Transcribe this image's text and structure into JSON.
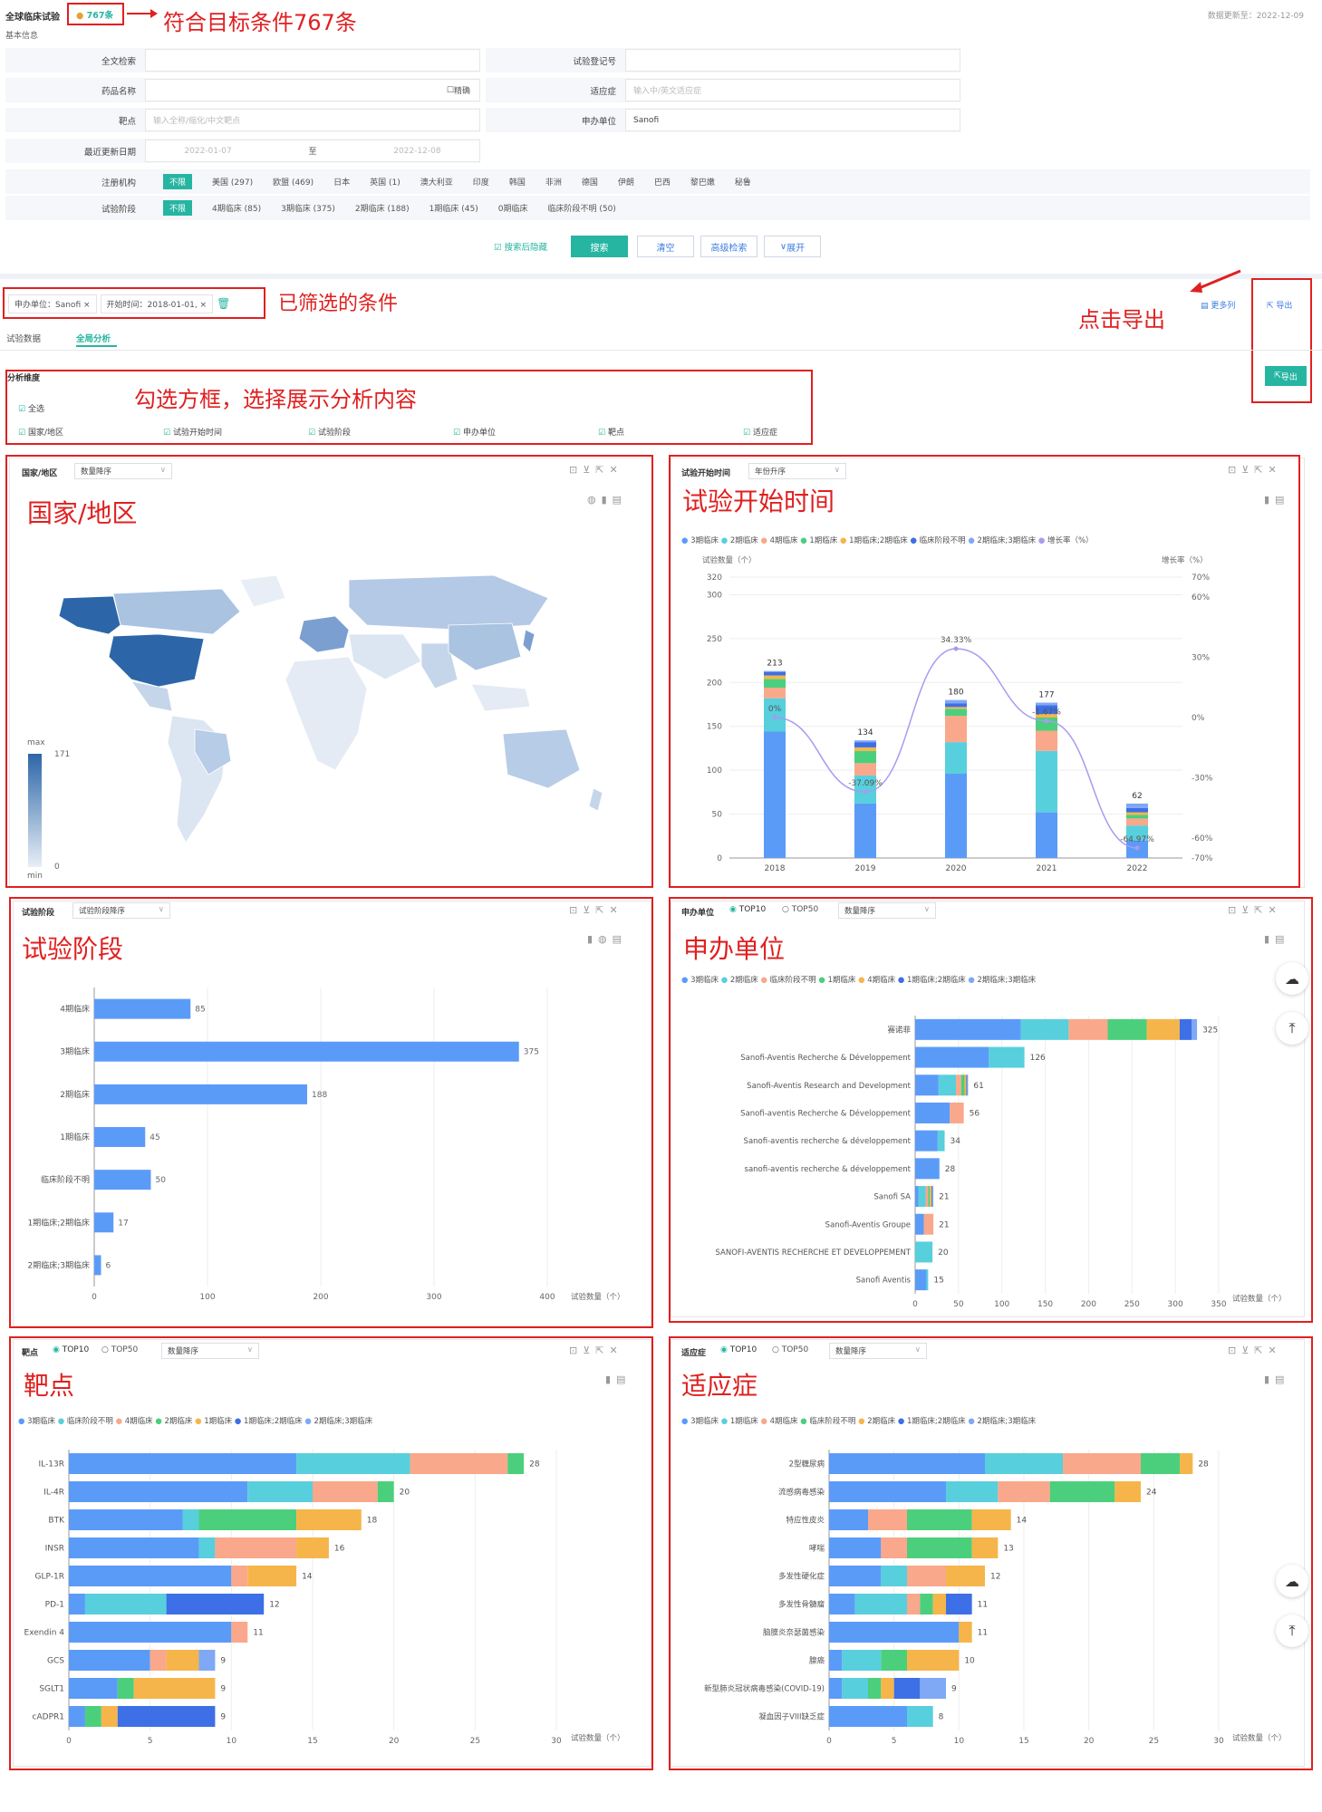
{
  "header": {
    "title": "全球临床试验",
    "count_badge": "767条",
    "annot_count": "符合目标条件767条",
    "updated": "数据更新至：2022-12-09",
    "section": "基本信息"
  },
  "form": {
    "fulltext_label": "全文检索",
    "regno_label": "试验登记号",
    "drug_label": "药品名称",
    "exact_label": "精确",
    "indication_label": "适应症",
    "indication_ph": "输入中/英文适应症",
    "target_label": "靶点",
    "target_ph": "输入全称/缩化/中文靶点",
    "sponsor_label": "申办单位",
    "sponsor_value": "Sanofi",
    "date_label": "最近更新日期",
    "date_from": "2022-01-07",
    "date_to_word": "至",
    "date_to": "2022-12-08",
    "reg_label": "注册机构",
    "reg_all": "不限",
    "reg_options": [
      "美国 (297)",
      "欧盟 (469)",
      "日本",
      "英国 (1)",
      "澳大利亚",
      "印度",
      "韩国",
      "非洲",
      "德国",
      "伊朗",
      "巴西",
      "黎巴嫩",
      "秘鲁"
    ],
    "phase_label": "试验阶段",
    "phase_all": "不限",
    "phase_options": [
      "4期临床 (85)",
      "3期临床 (375)",
      "2期临床 (188)",
      "1期临床 (45)",
      "0期临床",
      "临床阶段不明 (50)"
    ]
  },
  "actions": {
    "hide_after": "搜索后隐藏",
    "search": "搜索",
    "clear": "清空",
    "advanced": "高级检索",
    "expand": "展开"
  },
  "filters": {
    "chips": [
      "申办单位：Sanofi ×",
      "开始时间：2018-01-01, ×"
    ],
    "annot": "已筛选的条件",
    "more_cols": "更多列",
    "export": "导出",
    "annot_export": "点击导出"
  },
  "tabs": {
    "data": "试验数据",
    "analysis": "全局分析"
  },
  "dims": {
    "title": "分析维度",
    "all": "全选",
    "items": [
      "国家/地区",
      "试验开始时间",
      "试验阶段",
      "申办单位",
      "靶点",
      "适应症"
    ],
    "annot": "勾选方框，选择展示分析内容",
    "export_btn": "导出"
  },
  "p_country": {
    "title": "国家/地区",
    "sort": "数量降序",
    "annot": "国家/地区",
    "max": "max",
    "min": "min",
    "vmax": "171",
    "vmin": "0"
  },
  "p_time": {
    "title": "试验开始时间",
    "sort": "年份升序",
    "annot": "试验开始时间",
    "legend": [
      "3期临床",
      "2期临床",
      "4期临床",
      "1期临床",
      "1期临床;2期临床",
      "临床阶段不明",
      "2期临床;3期临床",
      "增长率（%）"
    ],
    "yleft": "试验数量（个）",
    "yright": "增长率（%）"
  },
  "p_phase": {
    "title": "试验阶段",
    "sort": "试验阶段降序",
    "annot": "试验阶段",
    "xlabel": "试验数量（个）"
  },
  "p_sponsor": {
    "title": "申办单位",
    "top10": "TOP10",
    "top50": "TOP50",
    "sort": "数量降序",
    "annot": "申办单位",
    "legend": [
      "3期临床",
      "2期临床",
      "临床阶段不明",
      "1期临床",
      "4期临床",
      "1期临床;2期临床",
      "2期临床;3期临床"
    ],
    "xlabel": "试验数量（个）"
  },
  "p_target": {
    "title": "靶点",
    "top10": "TOP10",
    "top50": "TOP50",
    "sort": "数量降序",
    "annot": "靶点",
    "legend": [
      "3期临床",
      "临床阶段不明",
      "4期临床",
      "2期临床",
      "1期临床",
      "1期临床;2期临床",
      "2期临床;3期临床"
    ],
    "xlabel": "试验数量（个）"
  },
  "p_indic": {
    "title": "适应症",
    "top10": "TOP10",
    "top50": "TOP50",
    "sort": "数量降序",
    "annot": "适应症",
    "legend": [
      "3期临床",
      "1期临床",
      "4期临床",
      "临床阶段不明",
      "2期临床",
      "1期临床;2期临床",
      "2期临床;3期临床"
    ],
    "xlabel": "试验数量（个）"
  },
  "chart_data": [
    {
      "type": "bar",
      "title": "试验开始时间",
      "categories": [
        "2018",
        "2019",
        "2020",
        "2021",
        "2022"
      ],
      "totals": [
        213,
        134,
        180,
        177,
        62
      ],
      "growth": [
        0,
        -37.09,
        34.33,
        -1.67,
        -64.97
      ],
      "growth_labels": [
        "0%",
        "-37.09%",
        "34.33%",
        "-1.67%",
        "-64.97%"
      ],
      "yticks": [
        0,
        50,
        100,
        150,
        200,
        250,
        300,
        320
      ],
      "ylim": [
        0,
        320
      ],
      "y2ticks": [
        "70%",
        "60%",
        "30%",
        "0%",
        "-30%",
        "-60%",
        "-70%"
      ],
      "series": [
        {
          "name": "3期临床",
          "values": [
            144,
            62,
            96,
            52,
            20
          ]
        },
        {
          "name": "2期临床",
          "values": [
            38,
            32,
            36,
            70,
            17
          ]
        },
        {
          "name": "4期临床",
          "values": [
            12,
            14,
            30,
            23,
            8
          ]
        },
        {
          "name": "1期临床",
          "values": [
            10,
            14,
            8,
            15,
            4
          ]
        },
        {
          "name": "1期临床;2期临床",
          "values": [
            4,
            4,
            2,
            4,
            3
          ]
        },
        {
          "name": "临床阶段不明",
          "values": [
            4,
            6,
            4,
            10,
            5
          ]
        },
        {
          "name": "2期临床;3期临床",
          "values": [
            1,
            2,
            4,
            3,
            5
          ]
        }
      ]
    },
    {
      "type": "bar",
      "title": "试验阶段",
      "categories": [
        "4期临床",
        "3期临床",
        "2期临床",
        "1期临床",
        "临床阶段不明",
        "1期临床;2期临床",
        "2期临床;3期临床"
      ],
      "values": [
        85,
        375,
        188,
        45,
        50,
        17,
        6
      ],
      "xticks": [
        0,
        100,
        200,
        300,
        400
      ],
      "xlim": [
        0,
        400
      ]
    },
    {
      "type": "bar",
      "title": "申办单位",
      "categories": [
        "赛诺菲",
        "Sanofi-Aventis Recherche & Développement",
        "Sanofi-Aventis Research and Development",
        "Sanofi-aventis Recherche & Développement",
        "Sanofi-aventis recherche & développement",
        "sanofi-aventis recherche & développement",
        "Sanofi SA",
        "Sanofi-Aventis Groupe",
        "SANOFI-AVENTIS RECHERCHE ET DEVELOPPEMENT",
        "Sanofi Aventis"
      ],
      "totals": [
        325,
        126,
        61,
        56,
        34,
        28,
        21,
        21,
        20,
        15
      ],
      "xticks": [
        0,
        50,
        100,
        150,
        200,
        250,
        300,
        350
      ],
      "xlim": [
        0,
        350
      ],
      "series": [
        {
          "name": "3期临床",
          "values": [
            122,
            85,
            27,
            40,
            26,
            28,
            4,
            10,
            0,
            13
          ]
        },
        {
          "name": "2期临床",
          "values": [
            55,
            41,
            20,
            0,
            8,
            0,
            8,
            0,
            20,
            2
          ]
        },
        {
          "name": "临床阶段不明",
          "values": [
            45,
            0,
            6,
            16,
            0,
            0,
            3,
            11,
            0,
            0
          ]
        },
        {
          "name": "1期临床",
          "values": [
            45,
            0,
            4,
            0,
            0,
            0,
            2,
            0,
            0,
            0
          ]
        },
        {
          "name": "4期临床",
          "values": [
            38,
            0,
            2,
            0,
            0,
            0,
            2,
            0,
            0,
            0
          ]
        },
        {
          "name": "1期临床;2期临床",
          "values": [
            14,
            0,
            1,
            0,
            0,
            0,
            1,
            0,
            0,
            0
          ]
        },
        {
          "name": "2期临床;3期临床",
          "values": [
            6,
            0,
            1,
            0,
            0,
            0,
            1,
            0,
            0,
            0
          ]
        }
      ]
    },
    {
      "type": "bar",
      "title": "靶点",
      "categories": [
        "IL-13R",
        "IL-4R",
        "BTK",
        "INSR",
        "GLP-1R",
        "PD-1",
        "Exendin 4",
        "GCS",
        "SGLT1",
        "cADPR1"
      ],
      "totals": [
        28,
        20,
        18,
        16,
        14,
        12,
        11,
        9,
        9,
        9
      ],
      "xticks": [
        0,
        5,
        10,
        15,
        20,
        25,
        30
      ],
      "xlim": [
        0,
        30
      ],
      "series": [
        {
          "name": "3期临床",
          "values": [
            14,
            11,
            7,
            8,
            10,
            1,
            10,
            5,
            3,
            1
          ]
        },
        {
          "name": "临床阶段不明",
          "values": [
            7,
            4,
            1,
            1,
            0,
            5,
            0,
            0,
            0,
            0
          ]
        },
        {
          "name": "4期临床",
          "values": [
            6,
            4,
            0,
            5,
            1,
            0,
            1,
            1,
            0,
            0
          ]
        },
        {
          "name": "2期临床",
          "values": [
            1,
            1,
            6,
            0,
            0,
            0,
            0,
            0,
            1,
            1
          ]
        },
        {
          "name": "1期临床",
          "values": [
            0,
            0,
            4,
            2,
            3,
            0,
            0,
            2,
            5,
            1
          ]
        },
        {
          "name": "1期临床;2期临床",
          "values": [
            0,
            0,
            0,
            0,
            0,
            6,
            0,
            0,
            0,
            6
          ]
        },
        {
          "name": "2期临床;3期临床",
          "values": [
            0,
            0,
            0,
            0,
            0,
            0,
            0,
            1,
            0,
            0
          ]
        }
      ]
    },
    {
      "type": "bar",
      "title": "适应症",
      "categories": [
        "2型糖尿病",
        "流感病毒感染",
        "特应性皮炎",
        "哮喘",
        "多发性硬化症",
        "多发性骨髓瘤",
        "脑膜炎奈瑟菌感染",
        "腺癌",
        "新型肺炎冠状病毒感染(COVID-19)",
        "凝血因子VIII缺乏症"
      ],
      "totals": [
        28,
        24,
        14,
        13,
        12,
        11,
        11,
        10,
        9,
        8
      ],
      "xticks": [
        0,
        5,
        10,
        15,
        20,
        25,
        30
      ],
      "xlim": [
        0,
        30
      ],
      "series": [
        {
          "name": "3期临床",
          "values": [
            12,
            9,
            3,
            4,
            4,
            2,
            10,
            1,
            1,
            6
          ]
        },
        {
          "name": "1期临床",
          "values": [
            6,
            4,
            0,
            0,
            2,
            4,
            0,
            3,
            2,
            2
          ]
        },
        {
          "name": "4期临床",
          "values": [
            6,
            4,
            3,
            2,
            3,
            1,
            0,
            0,
            0,
            0
          ]
        },
        {
          "name": "临床阶段不明",
          "values": [
            3,
            5,
            5,
            5,
            0,
            1,
            0,
            2,
            1,
            0
          ]
        },
        {
          "name": "2期临床",
          "values": [
            1,
            2,
            3,
            2,
            3,
            1,
            1,
            4,
            1,
            0
          ]
        },
        {
          "name": "1期临床;2期临床",
          "values": [
            0,
            0,
            0,
            0,
            0,
            2,
            0,
            0,
            2,
            0
          ]
        },
        {
          "name": "2期临床;3期临床",
          "values": [
            0,
            0,
            0,
            0,
            0,
            0,
            0,
            0,
            2,
            0
          ]
        }
      ]
    }
  ],
  "colors": {
    "teal": "#26b5a1",
    "red": "#e02020",
    "s1": "#5b9bf8",
    "s2": "#58cfdc",
    "s3": "#f9a88b",
    "s4": "#4ccf7c",
    "s5": "#f6b54a",
    "s6": "#3d6fe6",
    "s7": "#7fa8f5",
    "growth": "#a79bf0",
    "map_dark": "#2c66a8",
    "map_light": "#dce6f2"
  }
}
